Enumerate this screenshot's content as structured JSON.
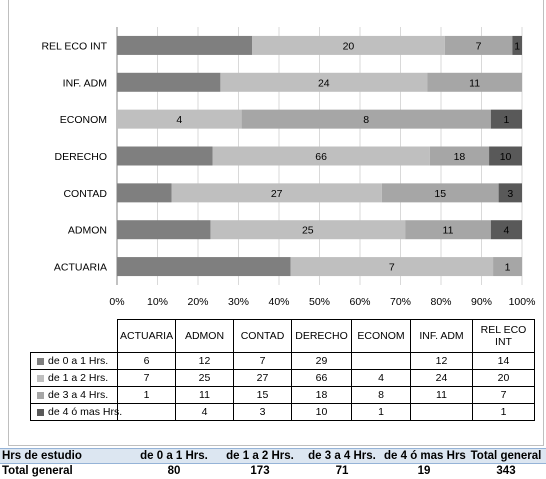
{
  "chart_data": {
    "type": "bar",
    "orientation": "horizontal",
    "stacked": "percent",
    "categories": [
      "ACTUARIA",
      "ADMON",
      "CONTAD",
      "DERECHO",
      "ECONOM",
      "INF. ADM",
      "REL ECO INT"
    ],
    "series": [
      {
        "name": "de 0 a 1 Hrs.",
        "color": "#7f7f7f",
        "values": [
          6,
          12,
          7,
          29,
          null,
          12,
          14
        ]
      },
      {
        "name": "de 1 a 2 Hrs.",
        "color": "#bfbfbf",
        "values": [
          7,
          25,
          27,
          66,
          4,
          24,
          20
        ]
      },
      {
        "name": "de 3 a 4 Hrs.",
        "color": "#a6a6a6",
        "values": [
          1,
          11,
          15,
          18,
          8,
          11,
          7
        ]
      },
      {
        "name": "de 4 ó mas Hrs.",
        "color": "#595959",
        "values": [
          null,
          4,
          3,
          10,
          1,
          null,
          1
        ]
      }
    ],
    "x_ticks": [
      "0%",
      "10%",
      "20%",
      "30%",
      "40%",
      "50%",
      "60%",
      "70%",
      "80%",
      "90%",
      "100%"
    ],
    "xlim": [
      0,
      100
    ],
    "legend": "data table below chart",
    "grid": "vertical major"
  },
  "summary": {
    "headers": [
      "Hrs de estudio",
      "de 0 a 1 Hrs.",
      "de 1 a 2 Hrs.",
      "de 3 a 4 Hrs.",
      "de 4 ó mas Hrs.",
      "Total general"
    ],
    "row_label": "Total general",
    "values": [
      "80",
      "173",
      "71",
      "19",
      "343"
    ],
    "header_bg": "#dce6f1"
  }
}
